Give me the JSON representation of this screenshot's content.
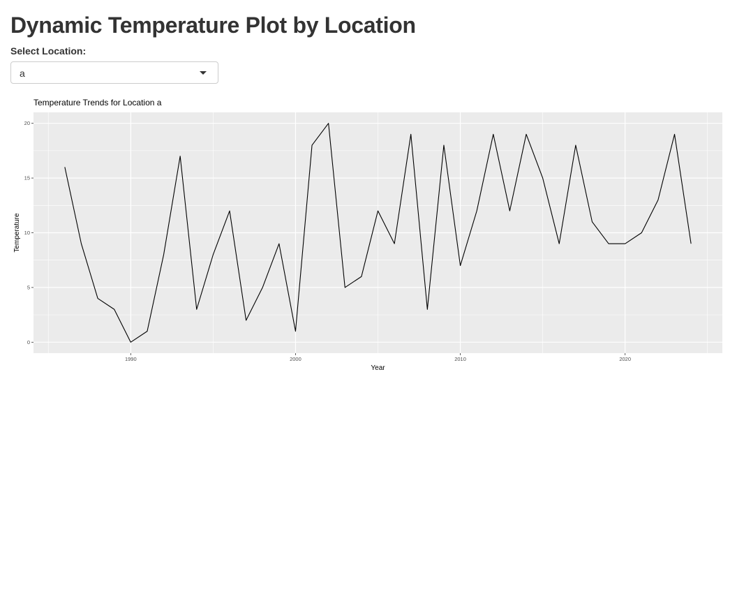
{
  "page": {
    "title": "Dynamic Temperature Plot by Location"
  },
  "location_select": {
    "label": "Select Location:",
    "value": "a"
  },
  "chart_data": {
    "type": "line",
    "title": "Temperature Trends for Location a",
    "xlabel": "Year",
    "ylabel": "Temperature",
    "xlim": [
      1984.1,
      2025.9
    ],
    "ylim": [
      -1,
      21
    ],
    "x_ticks": [
      1990,
      2000,
      2010,
      2020
    ],
    "y_ticks": [
      0,
      5,
      10,
      15,
      20
    ],
    "grid": true,
    "background": "#EBEBEB",
    "line_color": "#000000",
    "x": [
      1986,
      1987,
      1988,
      1989,
      1990,
      1991,
      1992,
      1993,
      1994,
      1995,
      1996,
      1997,
      1998,
      1999,
      2000,
      2001,
      2002,
      2003,
      2004,
      2005,
      2006,
      2007,
      2008,
      2009,
      2010,
      2011,
      2012,
      2013,
      2014,
      2015,
      2016,
      2017,
      2018,
      2019,
      2020,
      2021,
      2022,
      2023,
      2024
    ],
    "y": [
      16,
      9,
      4,
      3,
      0,
      1,
      8,
      17,
      3,
      8,
      12,
      2,
      5,
      9,
      1,
      18,
      20,
      5,
      6,
      12,
      9,
      19,
      3,
      18,
      7,
      12,
      19,
      12,
      19,
      15,
      9,
      18,
      11,
      9,
      9,
      10,
      13,
      19,
      9
    ]
  }
}
